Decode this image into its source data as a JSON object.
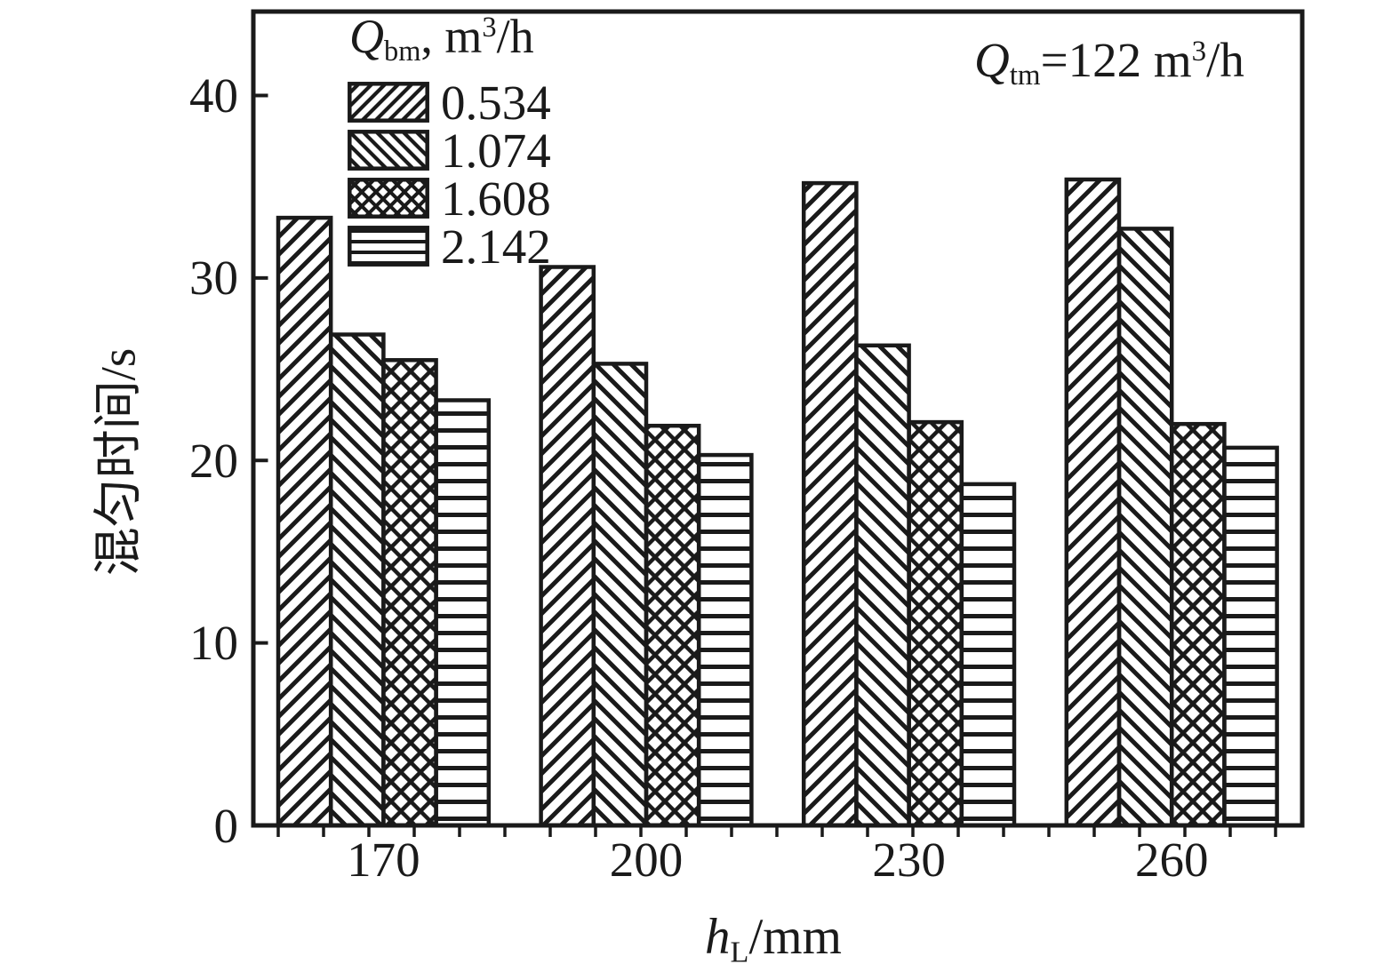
{
  "colors": {
    "foreground": "#1a1a1a",
    "background": "#ffffff"
  },
  "axes": {
    "y_label": "混匀时间/s",
    "x_label": {
      "symbol": "h",
      "subscript": "L",
      "suffix": "/mm"
    }
  },
  "legend": {
    "title": {
      "symbol": "Q",
      "subscript": "bm",
      "separator": ", ",
      "unit_base": "m",
      "unit_exponent": "3",
      "unit_suffix": "/h"
    },
    "items": [
      {
        "label": "0.534",
        "pattern": "diagonal-forward"
      },
      {
        "label": "1.074",
        "pattern": "diagonal-backward"
      },
      {
        "label": "1.608",
        "pattern": "crosshatch"
      },
      {
        "label": "2.142",
        "pattern": "horizontal-lines"
      }
    ]
  },
  "annotation": {
    "symbol": "Q",
    "subscript": "tm",
    "equals": "=",
    "value": "122",
    "unit_base": " m",
    "unit_exponent": "3",
    "unit_suffix": "/h"
  },
  "chart_data": {
    "type": "bar",
    "title": "",
    "xlabel": "h_L/mm",
    "ylabel": "混匀时间/s (mixing time, s)",
    "legend_title": "Q_bm, m^3/h",
    "annotation": "Q_tm=122 m^3/h",
    "categories": [
      "170",
      "200",
      "230",
      "260"
    ],
    "series": [
      {
        "name": "0.534",
        "pattern": "diagonal-forward",
        "values": [
          33.3,
          30.6,
          35.2,
          35.4
        ]
      },
      {
        "name": "1.074",
        "pattern": "diagonal-backward",
        "values": [
          26.9,
          25.3,
          26.3,
          32.7
        ]
      },
      {
        "name": "1.608",
        "pattern": "crosshatch",
        "values": [
          25.5,
          21.9,
          22.1,
          22.0
        ]
      },
      {
        "name": "2.142",
        "pattern": "horizontal-lines",
        "values": [
          23.3,
          20.3,
          18.7,
          20.7
        ]
      }
    ],
    "ylim": [
      0,
      44.6
    ],
    "yticks": [
      "0",
      "10",
      "20",
      "30",
      "40"
    ],
    "grid": false,
    "legend_position": "top-left-inside",
    "bar_fill": "white-with-black-hatch"
  }
}
